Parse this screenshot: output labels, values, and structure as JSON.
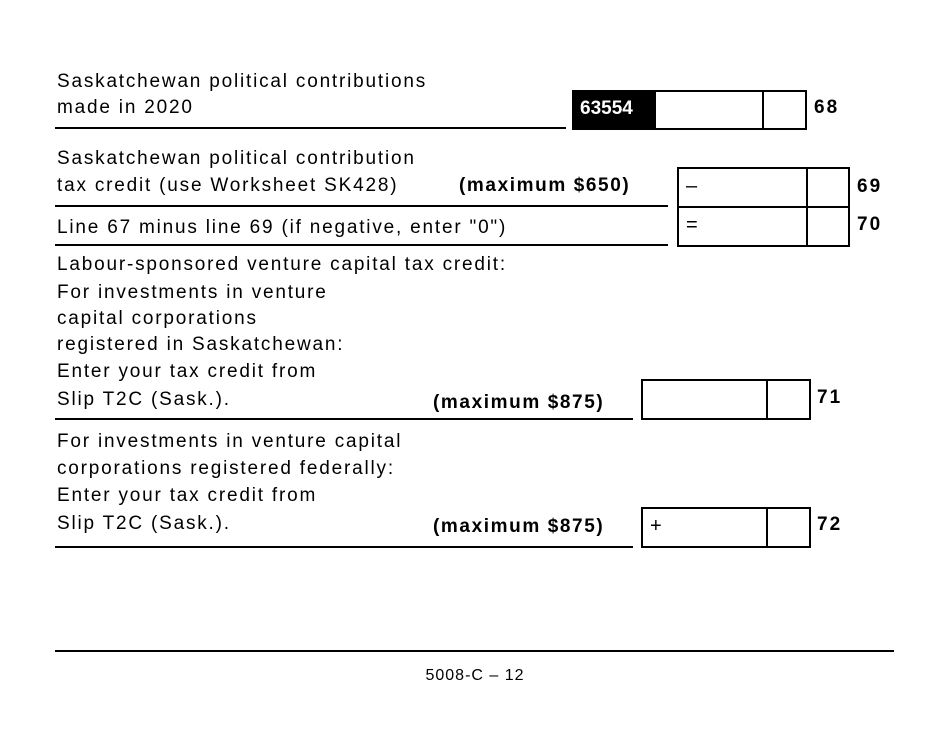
{
  "line68": {
    "text": [
      "Saskatchewan political contributions",
      "made in 2020"
    ],
    "code": "63554",
    "number": "68"
  },
  "line69": {
    "text": [
      "Saskatchewan political contribution",
      "tax credit (use Worksheet SK428)"
    ],
    "max": "(maximum $650)",
    "sign": "–",
    "number": "69"
  },
  "line70": {
    "text": "Line 67 minus line 69 (if negative, enter \"0\")",
    "sign": "=",
    "number": "70"
  },
  "labour": {
    "heading": "Labour-sponsored venture capital tax credit:"
  },
  "line71": {
    "text": [
      "For investments in venture",
      "capital corporations",
      "registered in Saskatchewan:",
      "Enter your tax credit from",
      "Slip T2C (Sask.)."
    ],
    "max": "(maximum $875)",
    "number": "71"
  },
  "line72": {
    "text": [
      "For investments in venture capital",
      "corporations registered federally:",
      "Enter your tax credit from",
      "Slip T2C (Sask.)."
    ],
    "max": "(maximum $875)",
    "sign": "+",
    "number": "72"
  },
  "footer": {
    "page": "5008-C – 12"
  }
}
